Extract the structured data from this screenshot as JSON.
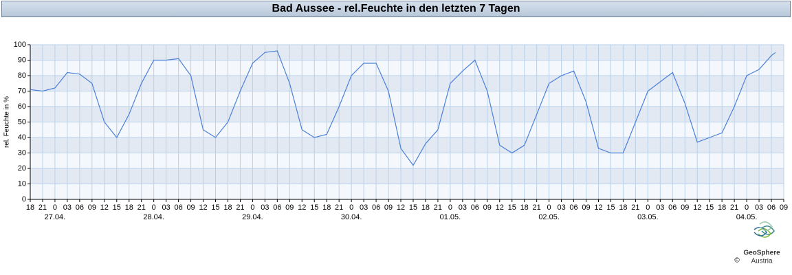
{
  "chart_data": {
    "type": "line",
    "title": "Bad Aussee - rel.Feuchte in den letzten 7 Tagen",
    "ylabel": "rel. Feuchte in %",
    "logo": "GeoSphere",
    "logo_sub": "Austria",
    "copyright": "©",
    "xlim": [
      0,
      183
    ],
    "ylim": [
      0,
      100
    ],
    "yticks": [
      0,
      10,
      20,
      30,
      40,
      50,
      60,
      70,
      80,
      90,
      100
    ],
    "xticks": [
      {
        "value": 0,
        "label": "18"
      },
      {
        "value": 3,
        "label": "21"
      },
      {
        "value": 6,
        "label": "0"
      },
      {
        "value": 9,
        "label": "03"
      },
      {
        "value": 12,
        "label": "06"
      },
      {
        "value": 15,
        "label": "09"
      },
      {
        "value": 18,
        "label": "12"
      },
      {
        "value": 21,
        "label": "15"
      },
      {
        "value": 24,
        "label": "18"
      },
      {
        "value": 27,
        "label": "21"
      },
      {
        "value": 30,
        "label": "0"
      },
      {
        "value": 33,
        "label": "03"
      },
      {
        "value": 36,
        "label": "06"
      },
      {
        "value": 39,
        "label": "09"
      },
      {
        "value": 42,
        "label": "12"
      },
      {
        "value": 45,
        "label": "15"
      },
      {
        "value": 48,
        "label": "18"
      },
      {
        "value": 51,
        "label": "21"
      },
      {
        "value": 54,
        "label": "0"
      },
      {
        "value": 57,
        "label": "03"
      },
      {
        "value": 60,
        "label": "06"
      },
      {
        "value": 63,
        "label": "09"
      },
      {
        "value": 66,
        "label": "12"
      },
      {
        "value": 69,
        "label": "15"
      },
      {
        "value": 72,
        "label": "18"
      },
      {
        "value": 75,
        "label": "21"
      },
      {
        "value": 78,
        "label": "0"
      },
      {
        "value": 81,
        "label": "03"
      },
      {
        "value": 84,
        "label": "06"
      },
      {
        "value": 87,
        "label": "09"
      },
      {
        "value": 90,
        "label": "12"
      },
      {
        "value": 93,
        "label": "15"
      },
      {
        "value": 96,
        "label": "18"
      },
      {
        "value": 99,
        "label": "21"
      },
      {
        "value": 102,
        "label": "0"
      },
      {
        "value": 105,
        "label": "03"
      },
      {
        "value": 108,
        "label": "06"
      },
      {
        "value": 111,
        "label": "09"
      },
      {
        "value": 114,
        "label": "12"
      },
      {
        "value": 117,
        "label": "15"
      },
      {
        "value": 120,
        "label": "18"
      },
      {
        "value": 123,
        "label": "21"
      },
      {
        "value": 126,
        "label": "0"
      },
      {
        "value": 129,
        "label": "03"
      },
      {
        "value": 132,
        "label": "06"
      },
      {
        "value": 135,
        "label": "09"
      },
      {
        "value": 138,
        "label": "12"
      },
      {
        "value": 141,
        "label": "15"
      },
      {
        "value": 144,
        "label": "18"
      },
      {
        "value": 147,
        "label": "21"
      },
      {
        "value": 150,
        "label": "0"
      },
      {
        "value": 153,
        "label": "03"
      },
      {
        "value": 156,
        "label": "06"
      },
      {
        "value": 159,
        "label": "09"
      },
      {
        "value": 162,
        "label": "12"
      },
      {
        "value": 165,
        "label": "15"
      },
      {
        "value": 168,
        "label": "18"
      },
      {
        "value": 171,
        "label": "21"
      },
      {
        "value": 174,
        "label": "0"
      },
      {
        "value": 177,
        "label": "03"
      },
      {
        "value": 180,
        "label": "06"
      },
      {
        "value": 183,
        "label": "09"
      }
    ],
    "day_labels": [
      {
        "value": 6,
        "label": "27.04."
      },
      {
        "value": 30,
        "label": "28.04."
      },
      {
        "value": 54,
        "label": "29.04."
      },
      {
        "value": 78,
        "label": "30.04."
      },
      {
        "value": 102,
        "label": "01.05."
      },
      {
        "value": 126,
        "label": "02.05."
      },
      {
        "value": 150,
        "label": "03.05."
      },
      {
        "value": 174,
        "label": "04.05."
      }
    ],
    "grid": true,
    "series": [
      {
        "name": "rel. Feuchte",
        "color": "#4a7fd8",
        "x": [
          0,
          3,
          6,
          9,
          12,
          15,
          18,
          21,
          24,
          27,
          30,
          33,
          36,
          39,
          42,
          45,
          48,
          51,
          54,
          57,
          60,
          63,
          66,
          69,
          72,
          75,
          78,
          81,
          84,
          87,
          90,
          93,
          96,
          99,
          102,
          105,
          108,
          111,
          114,
          117,
          120,
          123,
          126,
          129,
          132,
          135,
          138,
          141,
          144,
          147,
          150,
          153,
          156,
          159,
          162,
          165,
          168,
          171,
          174,
          177,
          180,
          181
        ],
        "values": [
          71,
          70,
          72,
          82,
          81,
          75,
          50,
          40,
          55,
          75,
          90,
          90,
          91,
          80,
          45,
          40,
          50,
          70,
          88,
          95,
          96,
          75,
          45,
          40,
          42,
          60,
          80,
          88,
          88,
          70,
          33,
          22,
          36,
          45,
          75,
          83,
          90,
          70,
          35,
          30,
          35,
          55,
          75,
          80,
          83,
          63,
          33,
          30,
          30,
          50,
          70,
          76,
          82,
          62,
          37,
          40,
          43,
          60,
          80,
          84,
          93,
          95
        ]
      }
    ]
  }
}
